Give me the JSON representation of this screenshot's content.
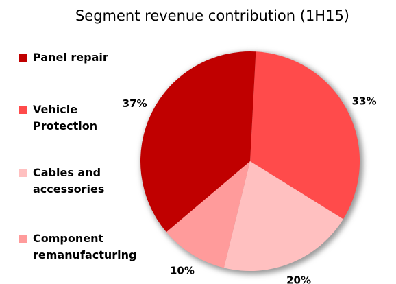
{
  "chart_data": {
    "type": "pie",
    "title": "Segment revenue contribution (1H15)",
    "categories": [
      "Panel repair",
      "Vehicle Protection",
      "Cables and accessories",
      "Component remanufacturing"
    ],
    "values": [
      37,
      33,
      20,
      10
    ],
    "value_labels": [
      "37%",
      "33%",
      "20%",
      "10%"
    ],
    "colors": [
      "#c00000",
      "#ff4b4b",
      "#ffc0c0",
      "#ff9b9b"
    ],
    "legend": "left"
  }
}
